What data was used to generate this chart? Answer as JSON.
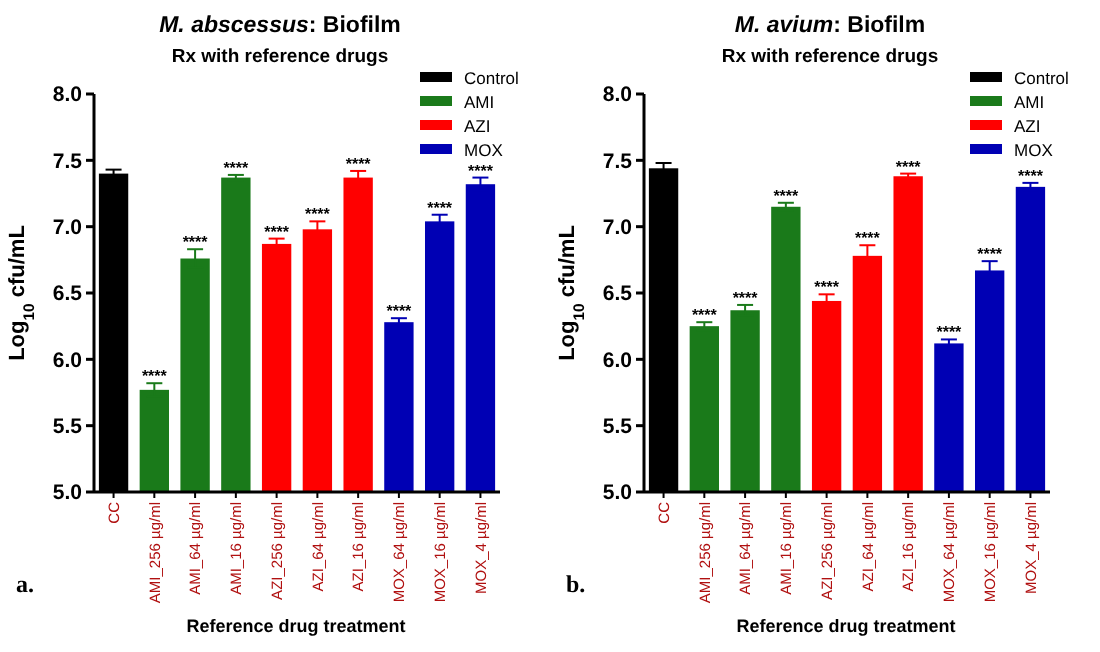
{
  "chart_data": [
    {
      "type": "bar",
      "title": "M. abscessus: Biofilm",
      "subtitle": "Rx with reference drugs",
      "xlabel": "Reference drug treatment",
      "ylabel": "Log$_{10}$ cfu/mL",
      "categories": [
        "CC",
        "AMI_256 µg/ml",
        "AMI_64 µg/ml",
        "AMI_16 µg/ml",
        "AZI_256 µg/ml",
        "AZI_64 µg/ml",
        "AZI_16 µg/ml",
        "MOX_64 µg/ml",
        "MOX_16 µg/ml",
        "MOX_4 µg/ml"
      ],
      "series": [
        {
          "name": "Control",
          "color": "#000000",
          "values": [
            7.4,
            null,
            null,
            null,
            null,
            null,
            null,
            null,
            null,
            null
          ],
          "errors": [
            0.03,
            null,
            null,
            null,
            null,
            null,
            null,
            null,
            null,
            null
          ]
        },
        {
          "name": "AMI",
          "color": "#1a7a1a",
          "values": [
            null,
            5.77,
            6.76,
            7.37,
            null,
            null,
            null,
            null,
            null,
            null
          ],
          "errors": [
            null,
            0.05,
            0.07,
            0.02,
            null,
            null,
            null,
            null,
            null,
            null
          ]
        },
        {
          "name": "AZI",
          "color": "#ff0000",
          "values": [
            null,
            null,
            null,
            null,
            6.87,
            6.98,
            7.37,
            null,
            null,
            null
          ],
          "errors": [
            null,
            null,
            null,
            null,
            0.04,
            0.06,
            0.05,
            null,
            null,
            null
          ]
        },
        {
          "name": "MOX",
          "color": "#0000b4",
          "values": [
            null,
            null,
            null,
            null,
            null,
            null,
            null,
            6.28,
            7.04,
            7.32
          ],
          "errors": [
            null,
            null,
            null,
            null,
            null,
            null,
            null,
            0.03,
            0.05,
            0.05
          ]
        }
      ],
      "ylim": [
        5.0,
        8.0
      ],
      "yticks": [
        {
          "value": 5,
          "label": "5.0"
        },
        {
          "value": 5.5,
          "label": "5.5"
        },
        {
          "value": 6,
          "label": "6.0"
        },
        {
          "value": 6.5,
          "label": "6.5"
        },
        {
          "value": 7,
          "label": "7.0"
        },
        {
          "value": 7.5,
          "label": "7.5"
        },
        {
          "value": 8,
          "label": "8.0"
        }
      ],
      "legend": "top right",
      "annotations": [
        "a.",
        {
          "text": "****",
          "x": "AMI_256 µg/ml",
          "y": 5.82
        },
        {
          "text": "****",
          "x": "AMI_64 µg/ml",
          "y": 6.83
        },
        {
          "text": "****",
          "x": "AMI_16 µg/ml",
          "y": 7.39
        },
        {
          "text": "****",
          "x": "AZI_256 µg/ml",
          "y": 6.91
        },
        {
          "text": "****",
          "x": "AZI_64 µg/ml",
          "y": 7.04
        },
        {
          "text": "****",
          "x": "AZI_16 µg/ml",
          "y": 7.42
        },
        {
          "text": "****",
          "x": "MOX_64 µg/ml",
          "y": 6.31
        },
        {
          "text": "****",
          "x": "MOX_16 µg/ml",
          "y": 7.09
        },
        {
          "text": "****",
          "x": "MOX_4 µg/ml",
          "y": 7.37
        }
      ]
    },
    {
      "type": "bar",
      "title": "M. avium: Biofilm",
      "subtitle": "Rx with reference drugs",
      "xlabel": "Reference drug treatment",
      "ylabel": "Log$_{10}$ cfu/mL",
      "categories": [
        "CC",
        "AMI_256 µg/ml",
        "AMI_64 µg/ml",
        "AMI_16 µg/ml",
        "AZI_256 µg/ml",
        "AZI_64 µg/ml",
        "AZI_16 µg/ml",
        "MOX_64 µg/ml",
        "MOX_16 µg/ml",
        "MOX_4 µg/ml"
      ],
      "series": [
        {
          "name": "Control",
          "color": "#000000",
          "values": [
            7.44,
            null,
            null,
            null,
            null,
            null,
            null,
            null,
            null,
            null
          ],
          "errors": [
            0.04,
            null,
            null,
            null,
            null,
            null,
            null,
            null,
            null,
            null
          ]
        },
        {
          "name": "AMI",
          "color": "#1a7a1a",
          "values": [
            null,
            6.25,
            6.37,
            7.15,
            null,
            null,
            null,
            null,
            null,
            null
          ],
          "errors": [
            null,
            0.03,
            0.04,
            0.03,
            null,
            null,
            null,
            null,
            null,
            null
          ]
        },
        {
          "name": "AZI",
          "color": "#ff0000",
          "values": [
            null,
            null,
            null,
            null,
            6.44,
            6.78,
            7.38,
            null,
            null,
            null
          ],
          "errors": [
            null,
            null,
            null,
            null,
            0.05,
            0.08,
            0.02,
            null,
            null,
            null
          ]
        },
        {
          "name": "MOX",
          "color": "#0000b4",
          "values": [
            null,
            null,
            null,
            null,
            null,
            null,
            null,
            6.12,
            6.67,
            7.3
          ],
          "errors": [
            null,
            null,
            null,
            null,
            null,
            null,
            null,
            0.03,
            0.07,
            0.03
          ]
        }
      ],
      "ylim": [
        5.0,
        8.0
      ],
      "yticks": [
        {
          "value": 5,
          "label": "5.0"
        },
        {
          "value": 5.5,
          "label": "5.5"
        },
        {
          "value": 6,
          "label": "6.0"
        },
        {
          "value": 6.5,
          "label": "6.5"
        },
        {
          "value": 7,
          "label": "7.0"
        },
        {
          "value": 7.5,
          "label": "7.5"
        },
        {
          "value": 8,
          "label": "8.0"
        }
      ],
      "legend": "top right",
      "annotations": [
        "b.",
        {
          "text": "****",
          "x": "AMI_256 µg/ml",
          "y": 6.28
        },
        {
          "text": "****",
          "x": "AMI_64 µg/ml",
          "y": 6.41
        },
        {
          "text": "****",
          "x": "AMI_16 µg/ml",
          "y": 7.18
        },
        {
          "text": "****",
          "x": "AZI_256 µg/ml",
          "y": 6.49
        },
        {
          "text": "****",
          "x": "AZI_64 µg/ml",
          "y": 6.86
        },
        {
          "text": "****",
          "x": "AZI_16 µg/ml",
          "y": 7.4
        },
        {
          "text": "****",
          "x": "MOX_64 µg/ml",
          "y": 6.15
        },
        {
          "text": "****",
          "x": "MOX_16 µg/ml",
          "y": 6.74
        },
        {
          "text": "****",
          "x": "MOX_4 µg/ml",
          "y": 7.33
        }
      ]
    }
  ]
}
